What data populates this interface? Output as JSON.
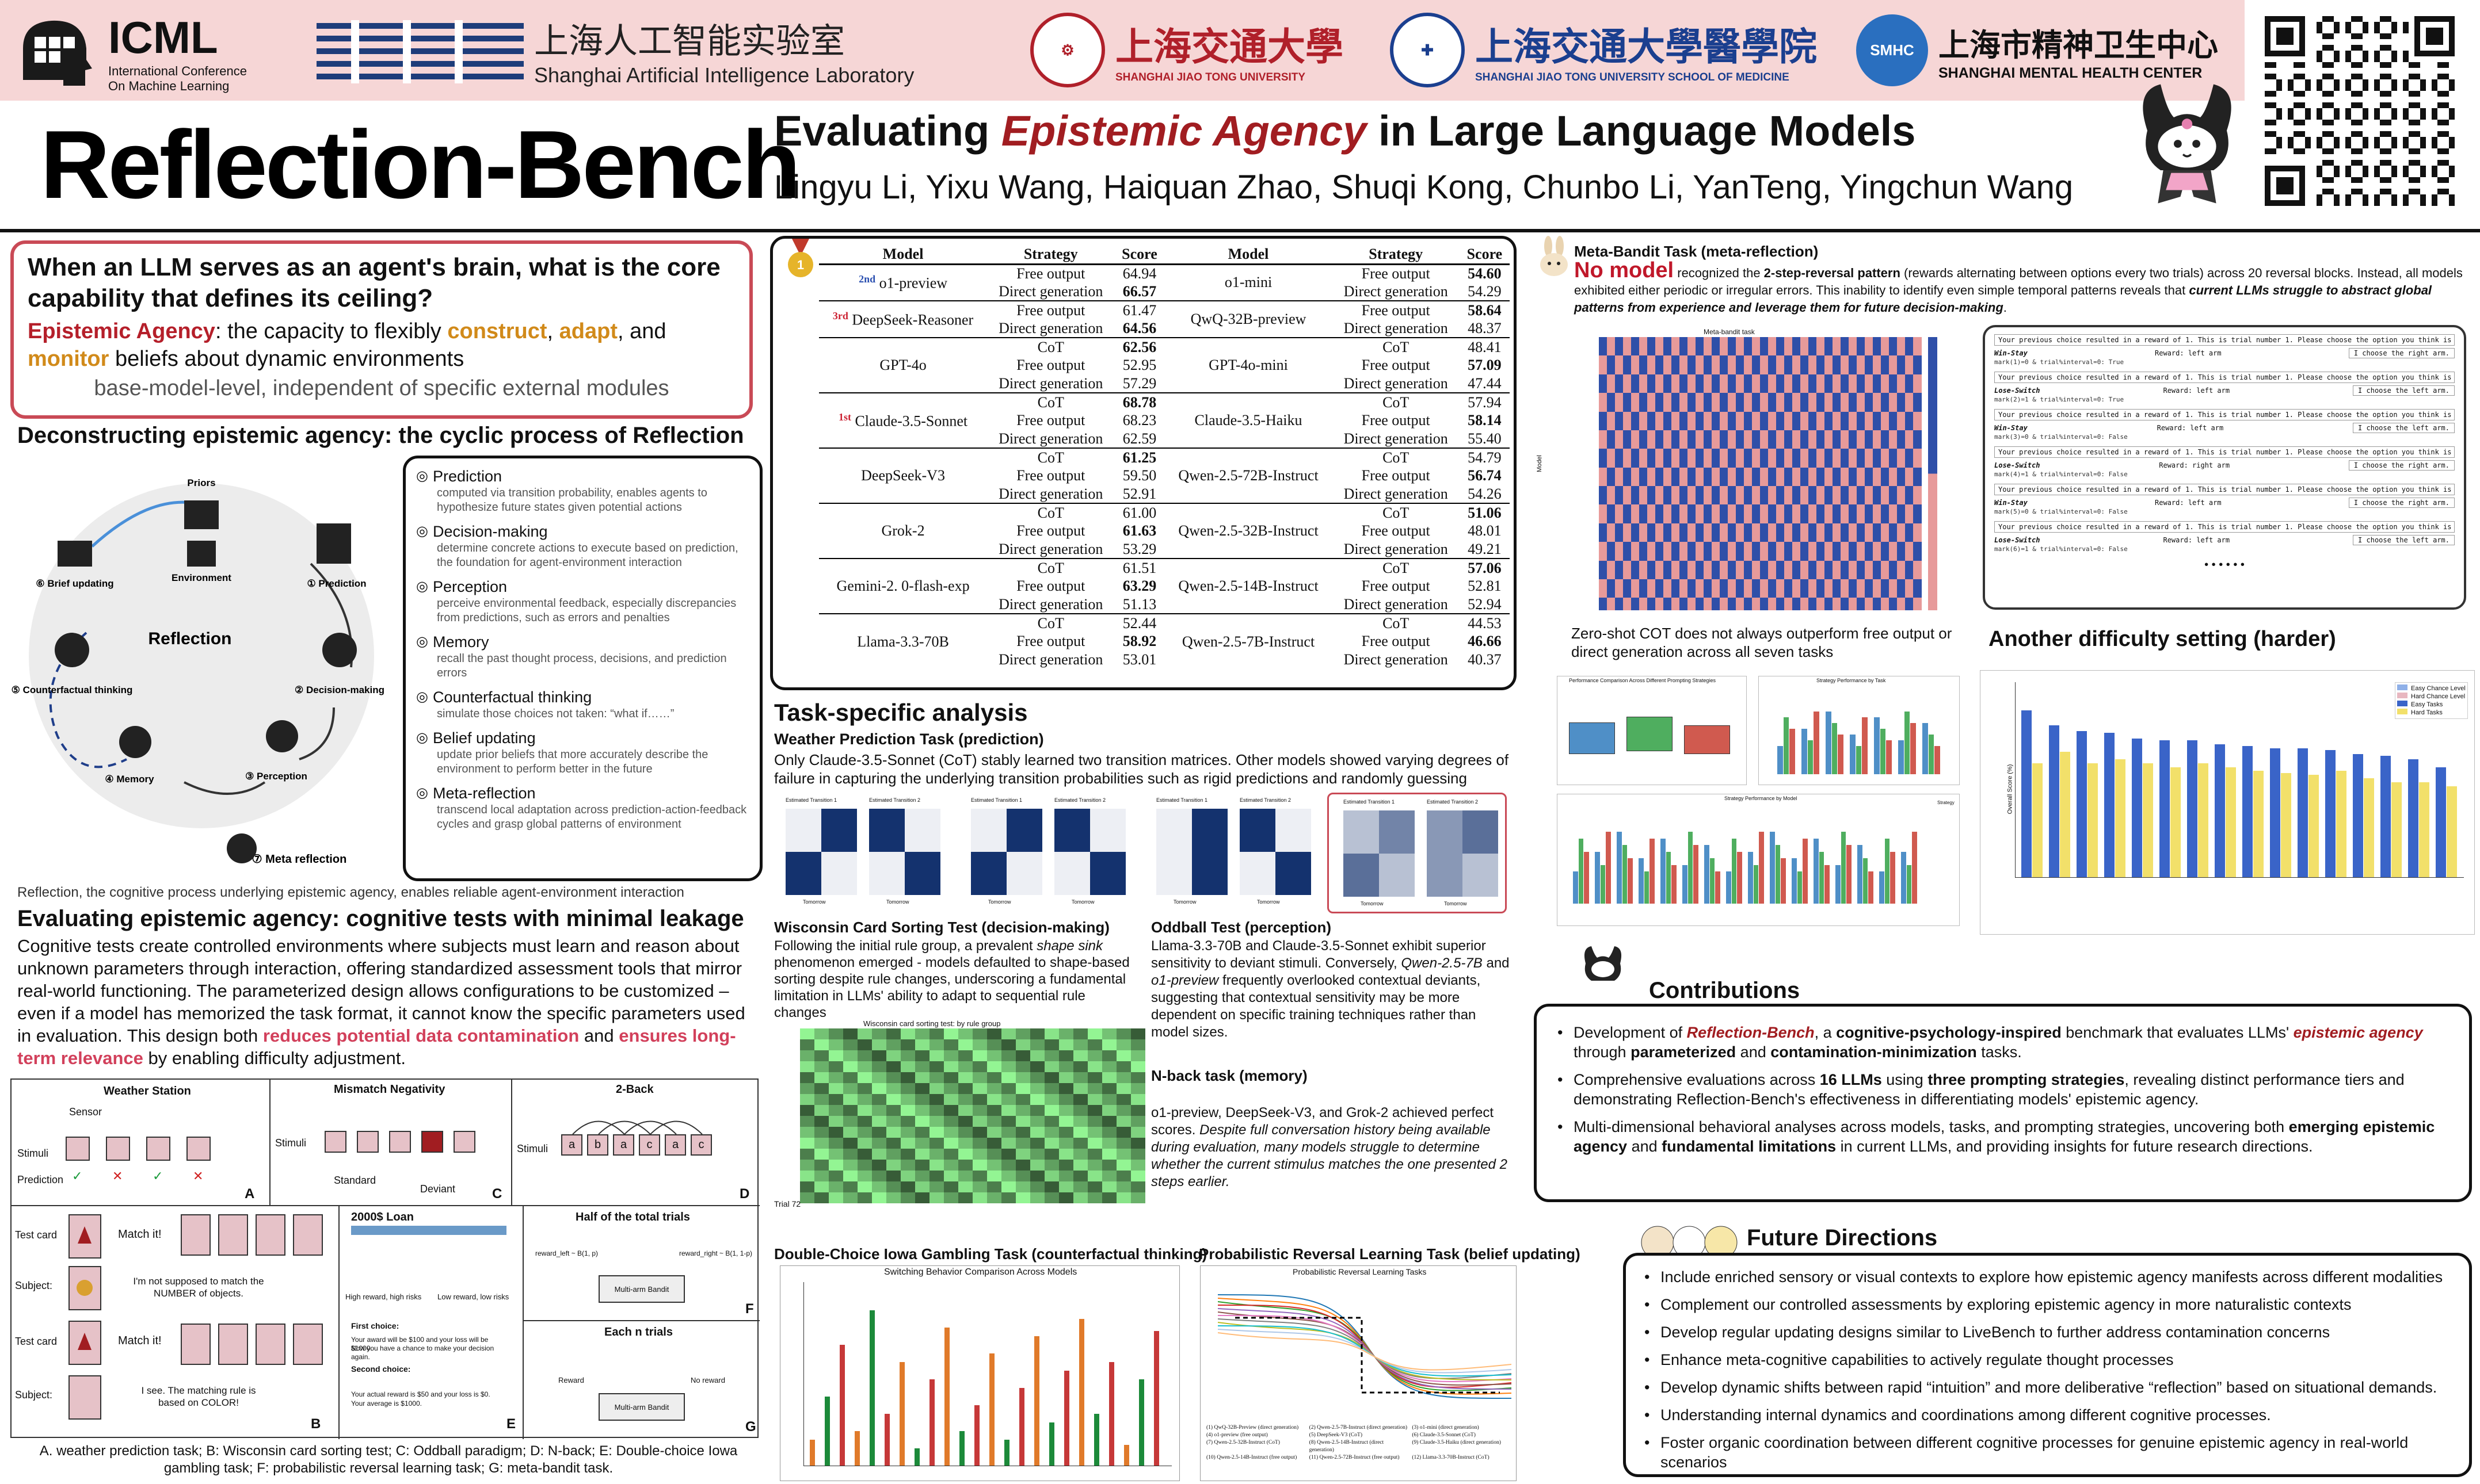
{
  "header": {
    "icml_big": "ICML",
    "icml_small": [
      "International Conference",
      "On Machine Learning"
    ],
    "shlab_cn": "上海人工智能实验室",
    "shlab_en": "Shanghai Artificial Intelligence Laboratory",
    "sjtu_cn": "上海交通大學",
    "sjtu_en": "SHANGHAI JIAO TONG UNIVERSITY",
    "sjtu_med_cn": "上海交通大學醫學院",
    "sjtu_med_en": "SHANGHAI JIAO TONG UNIVERSITY SCHOOL OF MEDICINE",
    "smhc_cn": "上海市精神卫生中心",
    "smhc_en": "SHANGHAI MENTAL HEALTH CENTER"
  },
  "title": "Reflection-Bench",
  "subtitle": {
    "pre": "Evaluating ",
    "highlight": "Epistemic Agency",
    "post": " in Large Language Models"
  },
  "authors": "Lingyu Li, Yixu Wang, Haiquan Zhao, Shuqi Kong, Chunbo Li, YanTeng, Yingchun Wang",
  "question": {
    "q": "When an LLM serves as an agent's brain, what is the core capability that defines its ceiling?",
    "def_label": "Epistemic Agency",
    "def_1": ": the capacity to flexibly ",
    "w1": "construct",
    "sep1": ", ",
    "w2": "adapt",
    "sep2": ", and ",
    "w3": "monitor",
    "def_2": " beliefs about dynamic environments",
    "note": "base-model-level, independent of specific external modules"
  },
  "deconstruct": {
    "heading_pre": "Deconstructing epistemic agency: the cyclic process of ",
    "heading_bold": "Reflection",
    "cycle_center": "Reflection",
    "cycle_nodes": [
      "Priors",
      "Environment",
      "① Prediction",
      "② Decision-making",
      "③ Perception",
      "④ Memory",
      "⑤ Counterfactual thinking",
      "⑥ Brief updating",
      "⑦ Meta reflection"
    ],
    "caption": "Reflection, the cognitive process underlying epistemic agency, enables reliable agent-environment interaction",
    "items": [
      {
        "name": "Prediction",
        "desc": "computed via transition probability, enables agents to hypothesize future states given potential actions"
      },
      {
        "name": "Decision-making",
        "desc": "determine concrete actions to execute based on prediction, the foundation for agent-environment interaction"
      },
      {
        "name": "Perception",
        "desc": "perceive environmental feedback, especially discrepancies from predictions, such as errors and penalties"
      },
      {
        "name": "Memory",
        "desc": "recall the past thought process, decisions, and prediction errors"
      },
      {
        "name": "Counterfactual thinking",
        "desc": "simulate those choices not taken: “what if……”"
      },
      {
        "name": "Belief updating",
        "desc": "update prior beliefs that more accurately describe the environment to perform better in the future"
      },
      {
        "name": "Meta-reflection",
        "desc": "transcend local adaptation across prediction-action-feedback cycles and grasp global patterns of environment"
      }
    ]
  },
  "evaluating": {
    "heading": "Evaluating epistemic agency: cognitive tests with minimal leakage",
    "p1": "Cognitive tests create controlled environments where subjects must learn and reason about unknown parameters through interaction, offering standardized assessment tools that mirror real-world functioning. The parameterized design allows configurations to be customized – even if a model has memorized the task format, it cannot know the specific parameters used in evaluation. This design both ",
    "r1": "reduces potential data contamination",
    "p2": " and ",
    "r2": "ensures long-term relevance",
    "p3": " by enabling difficulty adjustment.",
    "panels": {
      "A": {
        "title": "Weather Station",
        "labels": [
          "Sensor",
          "Stimuli",
          "Prediction"
        ],
        "tag": "A"
      },
      "C": {
        "title": "Mismatch Negativity",
        "labels": [
          "Stimuli",
          "Standard",
          "Deviant"
        ],
        "tag": "C"
      },
      "D": {
        "title": "2-Back",
        "labels": [
          "Stimuli"
        ],
        "seq": [
          "a",
          "b",
          "a",
          "c",
          "a",
          "c"
        ],
        "tag": "D"
      },
      "B": {
        "labels": [
          "Test card",
          "Subject:",
          "Test card",
          "Subject:"
        ],
        "say1": "Match it!",
        "say2": "I'm not supposed to match the NUMBER of objects.",
        "say3": "Match it!",
        "say4": "I see. The matching rule is based on COLOR!",
        "tag": "B"
      },
      "E": {
        "title": "2000$ Loan",
        "lines": [
          "High reward, high risks",
          "Low reward, low risks",
          "First choice:",
          "Your award will be $100 and your loss will be $1000.",
          "Now you have a chance to make your decision again.",
          "Second choice:",
          "Your actual reward is $50 and your loss is $0.",
          "Your average is $1000."
        ],
        "tag": "E"
      },
      "F": {
        "title": "Half of the total trials",
        "left": "reward_left ~ B(1, p)",
        "right": "reward_right ~ B(1, 1-p)",
        "box": "Multi-arm Bandit",
        "tag": "F"
      },
      "G": {
        "title": "Each n trials",
        "left": "Reward",
        "right": "No reward",
        "box": "Multi-arm Bandit",
        "tag": "G"
      }
    },
    "caption": "A. weather prediction task; B: Wisconsin card sorting test; C: Oddball paradigm; D: N-back; E: Double-choice Iowa gambling task; F: probabilistic reversal learning task; G: meta-bandit task."
  },
  "results_table": {
    "head": [
      "Model",
      "Strategy",
      "Score",
      "Model",
      "Strategy",
      "Score"
    ],
    "rows": [
      {
        "rank": "2nd",
        "model": "o1-preview",
        "strat": [
          "Free output",
          "Direct generation"
        ],
        "score": [
          "64.94",
          "66.57"
        ],
        "bold": [
          false,
          true
        ],
        "model2": "o1-mini",
        "strat2": [
          "Free output",
          "Direct generation"
        ],
        "score2": [
          "54.60",
          "54.29"
        ],
        "bold2": [
          true,
          false
        ]
      },
      {
        "rank": "3rd",
        "model": "DeepSeek-Reasoner",
        "strat": [
          "Free output",
          "Direct generation"
        ],
        "score": [
          "61.47",
          "64.56"
        ],
        "bold": [
          false,
          true
        ],
        "model2": "QwQ-32B-preview",
        "strat2": [
          "Free output",
          "Direct generation"
        ],
        "score2": [
          "58.64",
          "48.37"
        ],
        "bold2": [
          true,
          false
        ]
      },
      {
        "rank": "",
        "model": "GPT-4o",
        "strat": [
          "CoT",
          "Free output",
          "Direct generation"
        ],
        "score": [
          "62.56",
          "52.95",
          "57.29"
        ],
        "bold": [
          true,
          false,
          false
        ],
        "model2": "GPT-4o-mini",
        "strat2": [
          "CoT",
          "Free output",
          "Direct generation"
        ],
        "score2": [
          "48.41",
          "57.09",
          "47.44"
        ],
        "bold2": [
          false,
          true,
          false
        ]
      },
      {
        "rank": "1st",
        "model": "Claude-3.5-Sonnet",
        "strat": [
          "CoT",
          "Free output",
          "Direct generation"
        ],
        "score": [
          "68.78",
          "68.23",
          "62.59"
        ],
        "bold": [
          true,
          false,
          false
        ],
        "model2": "Claude-3.5-Haiku",
        "strat2": [
          "CoT",
          "Free output",
          "Direct generation"
        ],
        "score2": [
          "57.94",
          "58.14",
          "55.40"
        ],
        "bold2": [
          false,
          true,
          false
        ]
      },
      {
        "rank": "",
        "model": "DeepSeek-V3",
        "strat": [
          "CoT",
          "Free output",
          "Direct generation"
        ],
        "score": [
          "61.25",
          "59.50",
          "52.91"
        ],
        "bold": [
          true,
          false,
          false
        ],
        "model2": "Qwen-2.5-72B-Instruct",
        "strat2": [
          "CoT",
          "Free output",
          "Direct generation"
        ],
        "score2": [
          "54.79",
          "56.74",
          "54.26"
        ],
        "bold2": [
          false,
          true,
          false
        ]
      },
      {
        "rank": "",
        "model": "Grok-2",
        "strat": [
          "CoT",
          "Free output",
          "Direct generation"
        ],
        "score": [
          "61.00",
          "61.63",
          "53.29"
        ],
        "bold": [
          false,
          true,
          false
        ],
        "model2": "Qwen-2.5-32B-Instruct",
        "strat2": [
          "CoT",
          "Free output",
          "Direct generation"
        ],
        "score2": [
          "51.06",
          "48.01",
          "49.21"
        ],
        "bold2": [
          true,
          false,
          false
        ]
      },
      {
        "rank": "",
        "model": "Gemini-2. 0-flash-exp",
        "strat": [
          "CoT",
          "Free output",
          "Direct generation"
        ],
        "score": [
          "61.51",
          "63.29",
          "51.13"
        ],
        "bold": [
          false,
          true,
          false
        ],
        "model2": "Qwen-2.5-14B-Instruct",
        "strat2": [
          "CoT",
          "Free output",
          "Direct generation"
        ],
        "score2": [
          "57.06",
          "52.81",
          "52.94"
        ],
        "bold2": [
          true,
          false,
          false
        ]
      },
      {
        "rank": "",
        "model": "Llama-3.3-70B",
        "strat": [
          "CoT",
          "Free output",
          "Direct generation"
        ],
        "score": [
          "52.44",
          "58.92",
          "53.01"
        ],
        "bold": [
          false,
          true,
          false
        ],
        "model2": "Qwen-2.5-7B-Instruct",
        "strat2": [
          "CoT",
          "Free output",
          "Direct generation"
        ],
        "score2": [
          "44.53",
          "46.66",
          "40.37"
        ],
        "bold2": [
          false,
          true,
          false
        ]
      }
    ]
  },
  "task_analysis": {
    "heading": "Task-specific analysis",
    "weather_title": "Weather Prediction Task (prediction)",
    "weather_text": "Only Claude-3.5-Sonnet (CoT) stably learned two transition matrices. Other models showed varying degrees of failure in capturing the underlying transition probabilities such as rigid predictions and randomly guessing",
    "wcst_title": "Wisconsin Card Sorting Test (decision-making)",
    "wcst_text_1": "Following the initial rule group, a prevalent ",
    "wcst_em": "shape sink",
    "wcst_text_2": " phenomenon emerged - models defaulted to shape-based sorting despite rule changes, underscoring a fundamental limitation in LLMs' ability to adapt to sequential rule changes",
    "wcst_fig_title": "Wisconsin card sorting test: by rule group",
    "wcst_trial_label": "Trial 72",
    "oddball_title": "Oddball Test (perception)",
    "oddball_text_1": "Llama-3.3-70B and Claude-3.5-Sonnet exhibit superior sensitivity to deviant stimuli. Conversely, ",
    "oddball_em": "Qwen-2.5-7B",
    "oddball_text_2": " and ",
    "oddball_em2": "o1-preview",
    "oddball_text_3": " frequently overlooked contextual deviants, suggesting that contextual sensitivity may be more dependent on specific training techniques rather than model sizes.",
    "nback_title": "N-back task (memory)",
    "nback_text_1": "o1-preview, DeepSeek-V3, and Grok-2 achieved perfect scores. ",
    "nback_em": "Despite full conversation history being available during evaluation, many models struggle to determine whether the current stimulus matches the one presented 2 steps earlier.",
    "igt_title": "Double-Choice Iowa Gambling Task (counterfactual thinking)",
    "igt_fig_title": "Switching Behavior Comparison Across Models",
    "prl_title": "Probabilistic Reversal Learning Task (belief updating)",
    "prl_fig_title": "Probabilistic Reversal Learning Tasks",
    "prl_legend": [
      "(1) QwQ-32B-Preview (direct generation)",
      "(2) Qwen-2.5-7B-Instruct (direct generation)",
      "(3) o1-mini (direct generation)",
      "(4) o1-preview (free output)",
      "(5) DeepSeek-V3 (CoT)",
      "(6) Claude-3.5-Sonnet (CoT)",
      "(7) Qwen-2.5-32B-Instruct (CoT)",
      "(8) Qwen-2.5-14B-Instruct (direct generation)",
      "(9) Claude-3.5-Haiku (direct generation)",
      "(10) Qwen-2.5-14B-Instruct (free output)",
      "(11) Qwen-2.5-72B-Instruct (free output)",
      "(12) Llama-3.3-70B-Instruct (CoT)"
    ],
    "heat_labels": [
      "Estimated Transition 1",
      "Estimated Transition 2"
    ],
    "heat_axis": [
      "Tomorrow",
      "Today"
    ]
  },
  "meta_bandit": {
    "title": "Meta-Bandit Task (meta-reflection)",
    "nomodel": "No model",
    "t1": " recognized the ",
    "b1": "2-step-reversal pattern",
    "t2": " (rewards alternating between options every two trials) across 20 reversal blocks.  Instead, all models exhibited either periodic or irregular errors. This inability to identify even simple temporal patterns reveals that ",
    "b2": "current LLMs struggle to abstract global patterns from experience and leverage them for future decision-making",
    "t3": ".",
    "fig_title": "Meta-bandit task",
    "ylabel": "Model",
    "trial_prompt": "Your previous choice resulted in a reward of 1. This is trial number 1. Please choose the option you think is best.",
    "dialog": [
      {
        "left": "Win-Stay",
        "reward": "Reward: left arm",
        "choose": "I choose the right arm."
      },
      {
        "left": "Lose-Switch",
        "reward": "Reward: left arm",
        "choose": "I choose the left arm."
      },
      {
        "left": "Win-Stay",
        "reward": "Reward: left arm",
        "choose": "I choose the left arm."
      },
      {
        "left": "Lose-Switch",
        "reward": "Reward: right arm",
        "choose": "I choose the right arm."
      },
      {
        "left": "Win-Stay",
        "reward": "Reward: left arm",
        "choose": "I choose the right arm."
      },
      {
        "left": "Lose-Switch",
        "reward": "Reward: left arm",
        "choose": "I choose the left arm."
      }
    ],
    "code_lines": [
      "mark(1)=0 & trial%interval=0: True",
      "mark(2)=1 & trial%interval=0: True",
      "mark(3)=0 & trial%interval=0: False",
      "mark(4)=1 & trial%interval=0: False",
      "mark(5)=0 & trial%interval=0: False",
      "mark(6)=1 & trial%interval=0: False",
      "mark(7)=0 & trial%interval=0: False"
    ],
    "dots": "• • • • • •"
  },
  "cot": {
    "heading": "Zero-shot COT does not always outperform free output or direct generation across all seven tasks",
    "fig1_title": "Performance Comparison Across Different Prompting Strategies",
    "fig2_title": "Strategy Performance by Task",
    "fig3_title": "Strategy Performance by Model",
    "legend_title": "Strategy"
  },
  "harder": {
    "heading": "Another difficulty setting (harder)",
    "ylabel": "Overall Score (%)",
    "legend": [
      "Easy Chance Level",
      "Hard Chance Level",
      "Easy Tasks",
      "Hard Tasks"
    ],
    "bar_colors": {
      "easy": "#3a64c8",
      "hard": "#f2e06a",
      "easy_chance": "#8fb0e8",
      "hard_chance": "#e8b7c0"
    }
  },
  "contributions": {
    "heading": "Contributions",
    "items": [
      {
        "parts": [
          [
            "Development of ",
            "n"
          ],
          [
            "Reflection-Bench",
            "ri"
          ],
          [
            ", a ",
            "n"
          ],
          [
            "cognitive-psychology-inspired",
            "b"
          ],
          [
            " benchmark that evaluates LLMs' ",
            "n"
          ],
          [
            "epistemic agency",
            "ri"
          ],
          [
            " through ",
            "n"
          ],
          [
            "parameterized",
            "b"
          ],
          [
            " and ",
            "n"
          ],
          [
            "contamination-minimization",
            "b"
          ],
          [
            " tasks.",
            "n"
          ]
        ]
      },
      {
        "parts": [
          [
            "Comprehensive evaluations across ",
            "n"
          ],
          [
            "16 LLMs",
            "b"
          ],
          [
            " using ",
            "n"
          ],
          [
            "three prompting strategies",
            "b"
          ],
          [
            ", revealing distinct performance tiers and demonstrating Reflection-Bench's effectiveness in differentiating models' epistemic agency.",
            "n"
          ]
        ]
      },
      {
        "parts": [
          [
            "Multi-dimensional behavioral analyses across models, tasks, and prompting strategies, uncovering both ",
            "n"
          ],
          [
            "emerging epistemic agency",
            "b"
          ],
          [
            " and ",
            "n"
          ],
          [
            "fundamental limitations",
            "b"
          ],
          [
            " in current LLMs, and providing insights for future research directions.",
            "n"
          ]
        ]
      }
    ]
  },
  "future": {
    "heading": "Future Directions",
    "items": [
      "Include enriched sensory or visual contexts to explore how epistemic agency manifests across different modalities",
      "Complement our controlled assessments by exploring epistemic agency in more naturalistic contexts",
      "Develop regular updating designs similar to LiveBench to further address contamination concerns",
      "Enhance meta-cognitive capabilities to actively regulate thought processes",
      "Develop dynamic shifts between rapid “intuition” and more deliberative “reflection” based on situational demands.",
      "Understanding internal dynamics and coordinations among different cognitive processes.",
      "Foster organic coordination between different cognitive processes for genuine epistemic agency in real-world scenarios"
    ]
  },
  "colors": {
    "brand_red": "#a11d21",
    "accent_orange": "#d18a1a",
    "pink_border": "#c94a56",
    "header_band": "#f6d6d6"
  }
}
